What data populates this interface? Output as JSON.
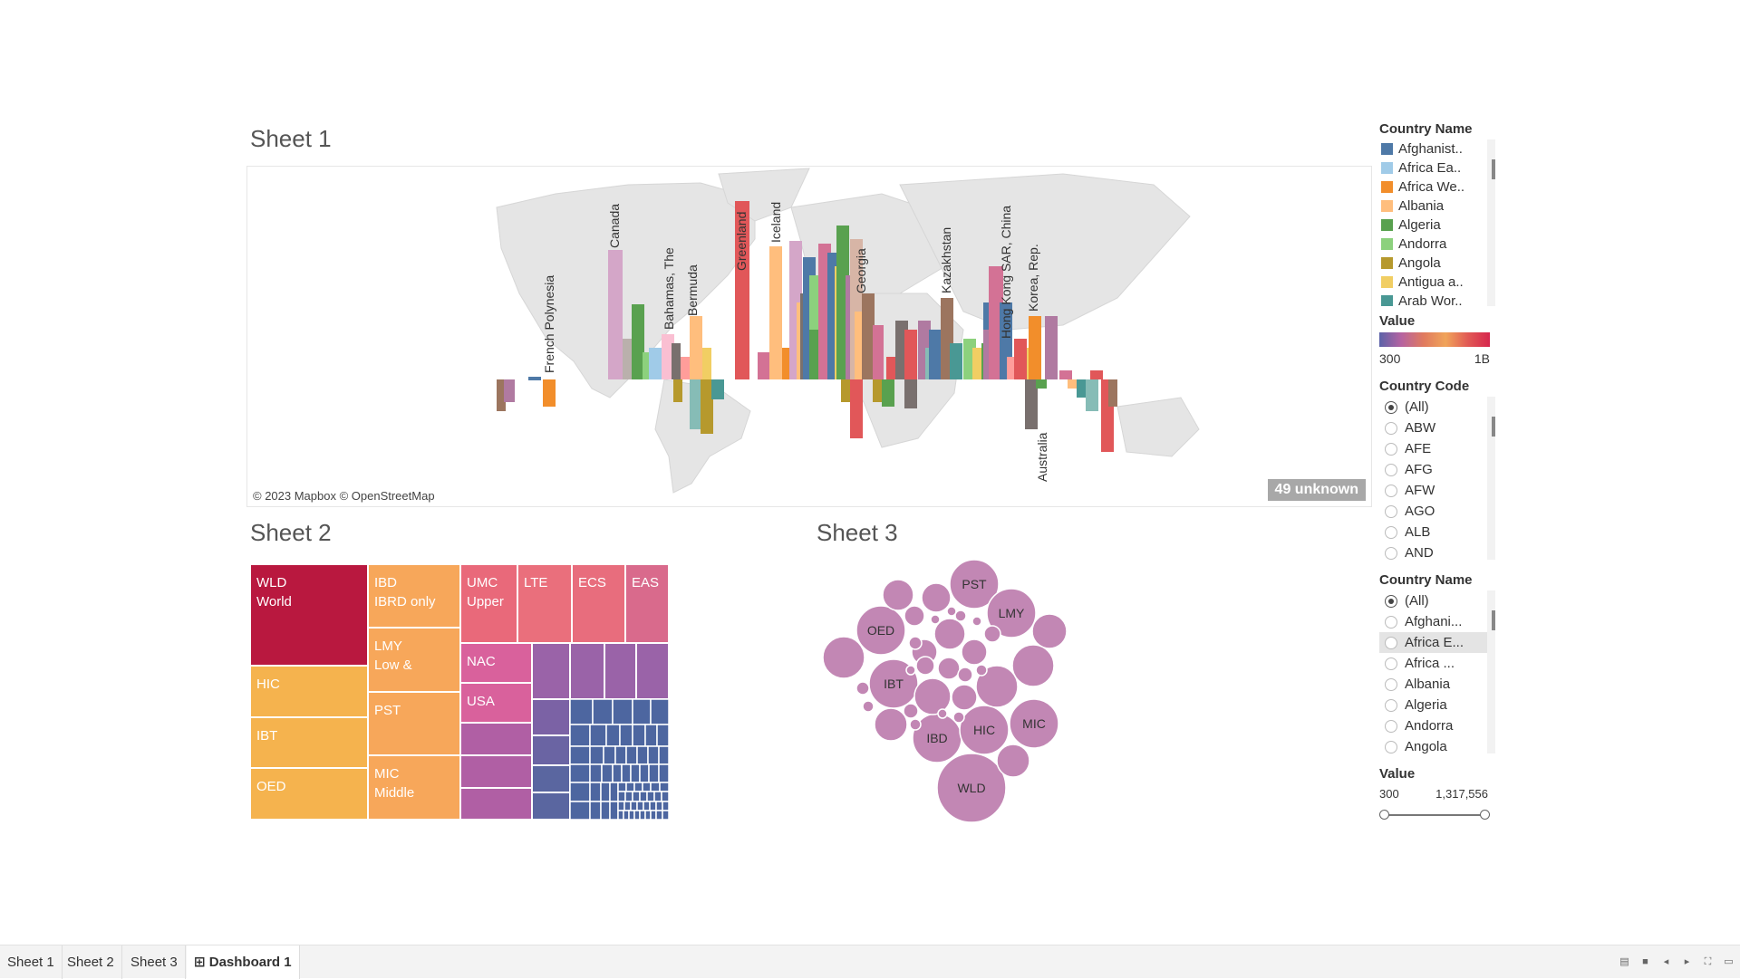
{
  "titles": {
    "sheet1": "Sheet 1",
    "sheet2": "Sheet 2",
    "sheet3": "Sheet 3"
  },
  "map": {
    "attribution": "© 2023 Mapbox © OpenStreetMap",
    "unknown_badge": "49 unknown",
    "labels": [
      "French Polynesia",
      "Canada",
      "Bahamas, The",
      "Bermuda",
      "Greenland",
      "Iceland",
      "Georgia",
      "Kazakhstan",
      "Hong Kong SAR, China",
      "Korea, Rep.",
      "Australia"
    ]
  },
  "treemap": {
    "cells": [
      {
        "code": "WLD",
        "name": "World",
        "color": "#b9183f"
      },
      {
        "code": "HIC",
        "name": "",
        "color": "#f5b34e"
      },
      {
        "code": "IBT",
        "name": "",
        "color": "#f5b34e"
      },
      {
        "code": "OED",
        "name": "",
        "color": "#f5b34e"
      },
      {
        "code": "IBD",
        "name": "IBRD only",
        "color": "#f7a75a"
      },
      {
        "code": "LMY",
        "name": "Low &",
        "color": "#f7a75a"
      },
      {
        "code": "PST",
        "name": "",
        "color": "#f7a75a"
      },
      {
        "code": "MIC",
        "name": "Middle",
        "color": "#f7a75a"
      },
      {
        "code": "UMC",
        "name": "Upper",
        "color": "#e9697a"
      },
      {
        "code": "LTE",
        "name": "",
        "color": "#ea6f7c"
      },
      {
        "code": "ECS",
        "name": "",
        "color": "#e86d7d"
      },
      {
        "code": "EAS",
        "name": "",
        "color": "#d96a8c"
      },
      {
        "code": "NAC",
        "name": "",
        "color": "#d9619c"
      },
      {
        "code": "USA",
        "name": "",
        "color": "#d9619c"
      }
    ]
  },
  "bubbles": {
    "labels": [
      "PST",
      "LMY",
      "OED",
      "IBT",
      "IBD",
      "HIC",
      "MIC",
      "WLD"
    ],
    "color": "#c287b4"
  },
  "sidebar": {
    "country_name_legend": {
      "title": "Country Name",
      "items": [
        {
          "label": "Afghanist..",
          "color": "#4e79a7"
        },
        {
          "label": "Africa Ea..",
          "color": "#a0cbe8"
        },
        {
          "label": "Africa We..",
          "color": "#f28e2b"
        },
        {
          "label": "Albania",
          "color": "#ffbe7d"
        },
        {
          "label": "Algeria",
          "color": "#59a14f"
        },
        {
          "label": "Andorra",
          "color": "#8cd17d"
        },
        {
          "label": "Angola",
          "color": "#b6992d"
        },
        {
          "label": "Antigua a..",
          "color": "#f1ce63"
        },
        {
          "label": "Arab Wor..",
          "color": "#499894"
        }
      ]
    },
    "value_legend": {
      "title": "Value",
      "min": "300",
      "max": "1B"
    },
    "country_code_filter": {
      "title": "Country Code",
      "items": [
        "(All)",
        "ABW",
        "AFE",
        "AFG",
        "AFW",
        "AGO",
        "ALB",
        "AND"
      ]
    },
    "country_name_filter": {
      "title": "Country Name",
      "items": [
        "(All)",
        "Afghani...",
        "Africa E...",
        "Africa ...",
        "Albania",
        "Algeria",
        "Andorra",
        "Angola"
      ]
    },
    "value_filter": {
      "title": "Value",
      "min": "300",
      "max": "1,317,556"
    }
  },
  "tabs": [
    "Sheet 1",
    "Sheet 2",
    "Sheet 3",
    "Dashboard 1"
  ]
}
